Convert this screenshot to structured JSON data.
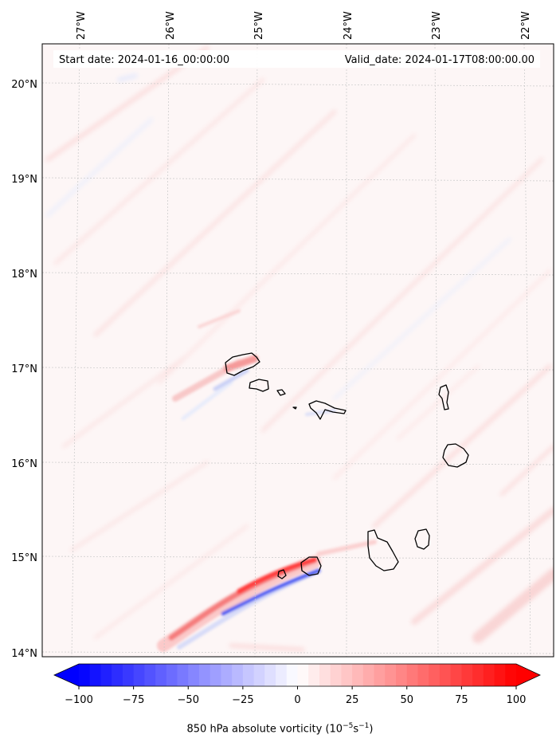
{
  "map": {
    "start_label": "Start date: 2024-01-16_00:00:00",
    "valid_label": "Valid_date: 2024-01-17T08:00:00.00",
    "lon_labels": [
      "27°W",
      "26°W",
      "25°W",
      "24°W",
      "23°W",
      "22°W"
    ],
    "lat_labels": [
      "20°N",
      "19°N",
      "18°N",
      "17°N",
      "16°N",
      "15°N",
      "14°N"
    ],
    "gridlines": true,
    "colors": {
      "positive": "#ff0000",
      "negative": "#0000ff",
      "neutral": "#ffffff",
      "coast": "#000000"
    }
  },
  "colorbar": {
    "ticks": [
      "−100",
      "−75",
      "−50",
      "−25",
      "0",
      "25",
      "50",
      "75",
      "100"
    ],
    "range": [
      -100,
      100
    ],
    "levels": 40,
    "label_main": "850 hPa absolute vorticity (10",
    "label_exp1": "−5",
    "label_mid": "s",
    "label_exp2": "−1",
    "label_end": ")"
  }
}
